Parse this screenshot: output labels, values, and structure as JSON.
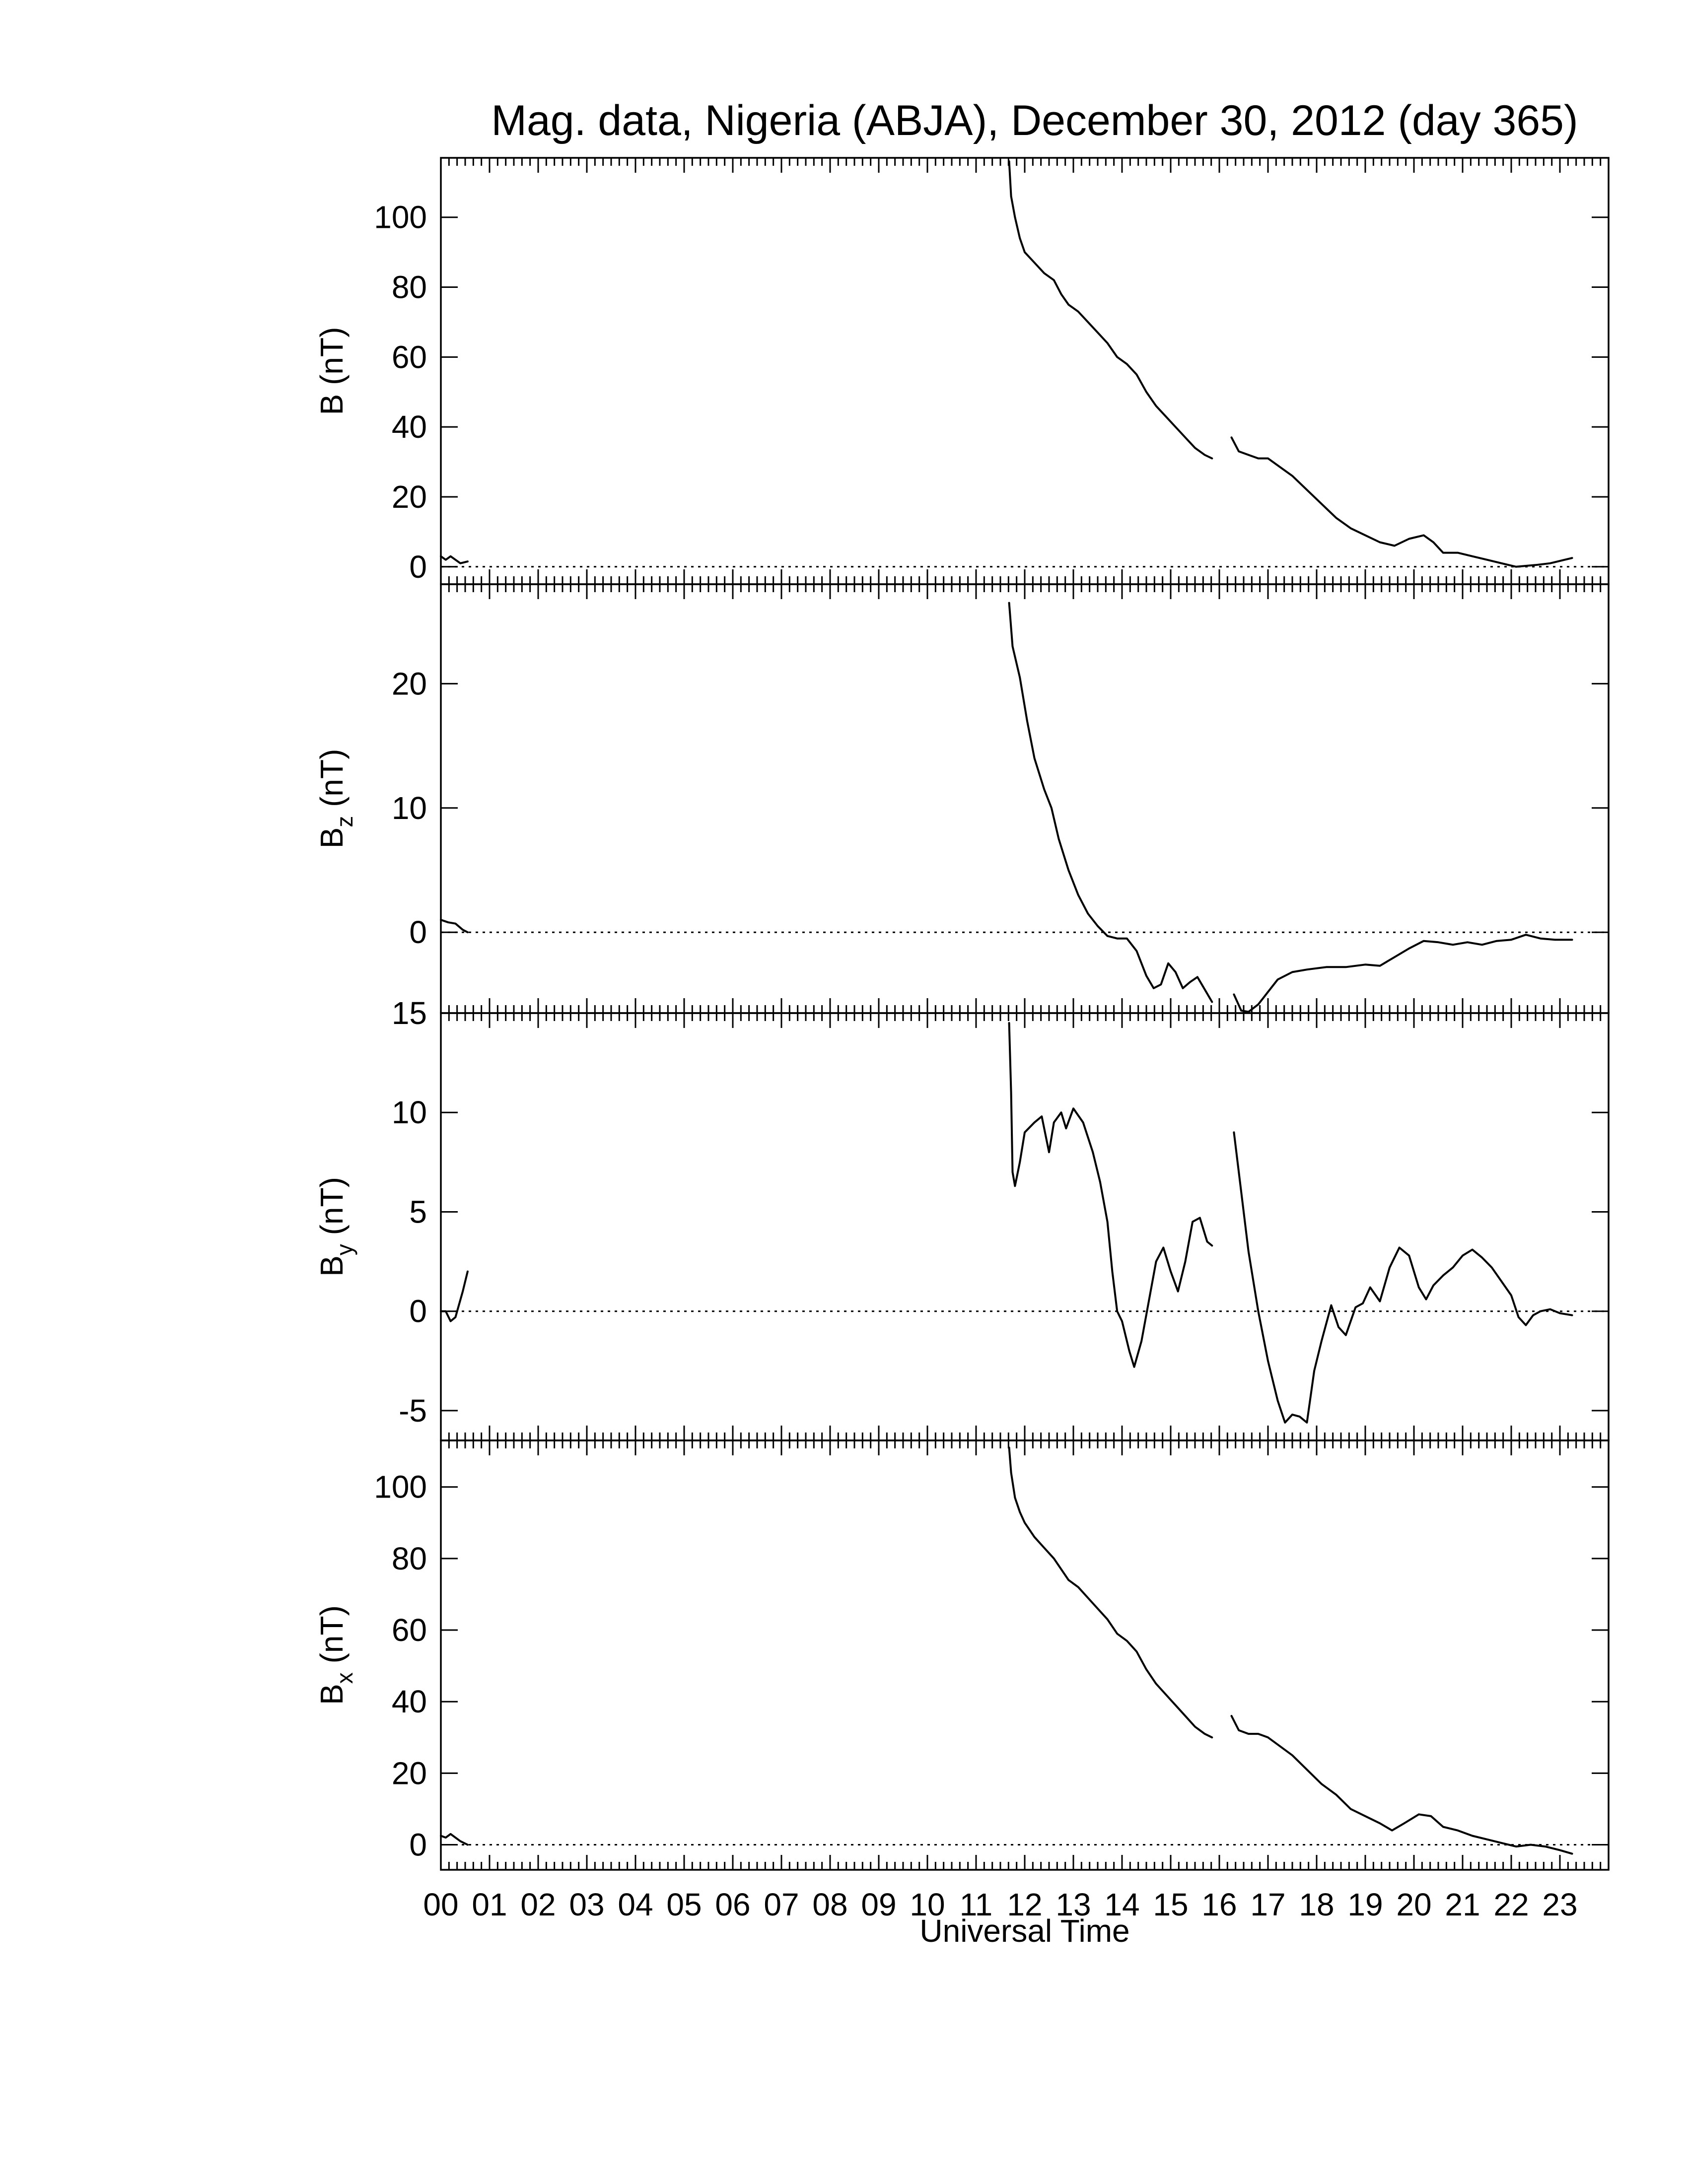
{
  "chart_data": {
    "type": "line",
    "title": "Mag. data, Nigeria (ABJA), December 30, 2012 (day 365)",
    "xlabel": "Universal Time",
    "xlim": [
      0,
      24
    ],
    "x_ticks": [
      "00",
      "01",
      "02",
      "03",
      "04",
      "05",
      "06",
      "07",
      "08",
      "09",
      "10",
      "11",
      "12",
      "13",
      "14",
      "15",
      "16",
      "17",
      "18",
      "19",
      "20",
      "21",
      "22",
      "23"
    ],
    "grid": false,
    "panels": [
      {
        "key": "b",
        "ylabel_main": "B",
        "ylabel_sub": "",
        "ylabel_unit": " (nT)",
        "ylim": [
          -5,
          117
        ],
        "yticks": [
          "0",
          "20",
          "40",
          "60",
          "80",
          "100"
        ],
        "ytick_values": [
          0,
          20,
          40,
          60,
          80,
          100
        ],
        "segments": [
          [
            [
              0.0,
              3.0
            ],
            [
              0.1,
              2.0
            ],
            [
              0.2,
              3.0
            ],
            [
              0.3,
              2.0
            ],
            [
              0.4,
              1.0
            ],
            [
              0.55,
              1.5
            ]
          ],
          [
            [
              11.68,
              116
            ],
            [
              11.72,
              106
            ],
            [
              11.8,
              100
            ],
            [
              11.9,
              94
            ],
            [
              12.0,
              90
            ],
            [
              12.2,
              87
            ],
            [
              12.4,
              84
            ],
            [
              12.6,
              82
            ],
            [
              12.75,
              78
            ],
            [
              12.9,
              75
            ],
            [
              13.1,
              73
            ],
            [
              13.3,
              70
            ],
            [
              13.5,
              67
            ],
            [
              13.7,
              64
            ],
            [
              13.9,
              60
            ],
            [
              14.1,
              58
            ],
            [
              14.3,
              55
            ],
            [
              14.5,
              50
            ],
            [
              14.7,
              46
            ],
            [
              14.9,
              43
            ],
            [
              15.1,
              40
            ],
            [
              15.3,
              37
            ],
            [
              15.5,
              34
            ],
            [
              15.7,
              32
            ],
            [
              15.85,
              31
            ]
          ],
          [
            [
              16.25,
              37
            ],
            [
              16.4,
              33
            ],
            [
              16.6,
              32
            ],
            [
              16.8,
              31
            ],
            [
              17.0,
              31
            ],
            [
              17.2,
              29
            ],
            [
              17.5,
              26
            ],
            [
              17.8,
              22
            ],
            [
              18.1,
              18
            ],
            [
              18.4,
              14
            ],
            [
              18.7,
              11
            ],
            [
              19.0,
              9
            ],
            [
              19.3,
              7
            ],
            [
              19.6,
              6
            ],
            [
              19.9,
              8
            ],
            [
              20.2,
              9
            ],
            [
              20.4,
              7
            ],
            [
              20.6,
              4
            ],
            [
              20.9,
              4
            ],
            [
              21.2,
              3
            ],
            [
              21.5,
              2
            ],
            [
              21.8,
              1
            ],
            [
              22.1,
              0
            ],
            [
              22.5,
              0.5
            ],
            [
              22.8,
              1
            ],
            [
              23.1,
              2
            ],
            [
              23.25,
              2.5
            ]
          ]
        ]
      },
      {
        "key": "bz",
        "ylabel_main": "B",
        "ylabel_sub": "z",
        "ylabel_unit": " (nT)",
        "ylim": [
          -6.5,
          28
        ],
        "yticks": [
          "0",
          "10",
          "20"
        ],
        "ytick_values": [
          0,
          10,
          20
        ],
        "segments": [
          [
            [
              0.0,
              1.0
            ],
            [
              0.15,
              0.8
            ],
            [
              0.3,
              0.7
            ],
            [
              0.45,
              0.2
            ],
            [
              0.55,
              0.0
            ]
          ],
          [
            [
              11.68,
              26.5
            ],
            [
              11.75,
              23
            ],
            [
              11.9,
              20.5
            ],
            [
              12.05,
              17
            ],
            [
              12.2,
              14
            ],
            [
              12.4,
              11.5
            ],
            [
              12.55,
              10
            ],
            [
              12.7,
              7.5
            ],
            [
              12.9,
              5
            ],
            [
              13.1,
              3
            ],
            [
              13.3,
              1.5
            ],
            [
              13.5,
              0.5
            ],
            [
              13.7,
              -0.3
            ],
            [
              13.9,
              -0.5
            ],
            [
              14.1,
              -0.5
            ],
            [
              14.3,
              -1.5
            ],
            [
              14.5,
              -3.5
            ],
            [
              14.65,
              -4.5
            ],
            [
              14.8,
              -4.2
            ],
            [
              14.95,
              -2.5
            ],
            [
              15.1,
              -3.2
            ],
            [
              15.25,
              -4.5
            ],
            [
              15.4,
              -4.0
            ],
            [
              15.55,
              -3.6
            ],
            [
              15.7,
              -4.6
            ],
            [
              15.85,
              -5.6
            ]
          ],
          [
            [
              16.3,
              -5.0
            ],
            [
              16.45,
              -6.3
            ],
            [
              16.6,
              -6.4
            ],
            [
              16.8,
              -5.8
            ],
            [
              17.0,
              -4.8
            ],
            [
              17.2,
              -3.8
            ],
            [
              17.5,
              -3.2
            ],
            [
              17.8,
              -3.0
            ],
            [
              18.2,
              -2.8
            ],
            [
              18.6,
              -2.8
            ],
            [
              19.0,
              -2.6
            ],
            [
              19.3,
              -2.7
            ],
            [
              19.6,
              -2.0
            ],
            [
              19.9,
              -1.3
            ],
            [
              20.2,
              -0.7
            ],
            [
              20.5,
              -0.8
            ],
            [
              20.8,
              -1.0
            ],
            [
              21.1,
              -0.8
            ],
            [
              21.4,
              -1.0
            ],
            [
              21.7,
              -0.7
            ],
            [
              22.0,
              -0.6
            ],
            [
              22.3,
              -0.2
            ],
            [
              22.6,
              -0.5
            ],
            [
              22.9,
              -0.6
            ],
            [
              23.25,
              -0.6
            ]
          ]
        ]
      },
      {
        "key": "by",
        "ylabel_main": "B",
        "ylabel_sub": "y",
        "ylabel_unit": " (nT)",
        "ylim": [
          -6.5,
          15
        ],
        "yticks": [
          "-5",
          "0",
          "5",
          "10",
          "15"
        ],
        "ytick_values": [
          -5,
          0,
          5,
          10,
          15
        ],
        "segments": [
          [
            [
              0.0,
              0.0
            ],
            [
              0.1,
              0.0
            ],
            [
              0.2,
              -0.5
            ],
            [
              0.3,
              -0.3
            ],
            [
              0.45,
              1.0
            ],
            [
              0.55,
              2.0
            ]
          ],
          [
            [
              11.68,
              14.5
            ],
            [
              11.72,
              11
            ],
            [
              11.75,
              7
            ],
            [
              11.8,
              6.3
            ],
            [
              11.9,
              7.5
            ],
            [
              12.0,
              9
            ],
            [
              12.2,
              9.5
            ],
            [
              12.35,
              9.8
            ],
            [
              12.5,
              8
            ],
            [
              12.6,
              9.5
            ],
            [
              12.75,
              10
            ],
            [
              12.85,
              9.2
            ],
            [
              13.0,
              10.2
            ],
            [
              13.2,
              9.5
            ],
            [
              13.4,
              8
            ],
            [
              13.55,
              6.5
            ],
            [
              13.7,
              4.5
            ],
            [
              13.8,
              2
            ],
            [
              13.9,
              0
            ],
            [
              14.0,
              -0.5
            ],
            [
              14.15,
              -2
            ],
            [
              14.25,
              -2.8
            ],
            [
              14.4,
              -1.5
            ],
            [
              14.55,
              0.5
            ],
            [
              14.7,
              2.5
            ],
            [
              14.85,
              3.2
            ],
            [
              15.0,
              2.0
            ],
            [
              15.15,
              1.0
            ],
            [
              15.3,
              2.5
            ],
            [
              15.45,
              4.5
            ],
            [
              15.6,
              4.7
            ],
            [
              15.75,
              3.5
            ],
            [
              15.85,
              3.3
            ]
          ],
          [
            [
              16.3,
              9.0
            ],
            [
              16.45,
              6
            ],
            [
              16.6,
              3
            ],
            [
              16.8,
              0
            ],
            [
              17.0,
              -2.5
            ],
            [
              17.2,
              -4.5
            ],
            [
              17.35,
              -5.6
            ],
            [
              17.5,
              -5.2
            ],
            [
              17.65,
              -5.3
            ],
            [
              17.8,
              -5.6
            ],
            [
              17.95,
              -3
            ],
            [
              18.1,
              -1.5
            ],
            [
              18.3,
              0.3
            ],
            [
              18.45,
              -0.8
            ],
            [
              18.6,
              -1.2
            ],
            [
              18.8,
              0.2
            ],
            [
              18.95,
              0.4
            ],
            [
              19.1,
              1.2
            ],
            [
              19.3,
              0.5
            ],
            [
              19.5,
              2.2
            ],
            [
              19.7,
              3.2
            ],
            [
              19.9,
              2.8
            ],
            [
              20.1,
              1.2
            ],
            [
              20.25,
              0.6
            ],
            [
              20.4,
              1.3
            ],
            [
              20.6,
              1.8
            ],
            [
              20.8,
              2.2
            ],
            [
              21.0,
              2.8
            ],
            [
              21.2,
              3.1
            ],
            [
              21.4,
              2.7
            ],
            [
              21.6,
              2.2
            ],
            [
              21.8,
              1.5
            ],
            [
              22.0,
              0.8
            ],
            [
              22.15,
              -0.3
            ],
            [
              22.3,
              -0.7
            ],
            [
              22.45,
              -0.2
            ],
            [
              22.6,
              0.0
            ],
            [
              22.8,
              0.1
            ],
            [
              23.0,
              -0.1
            ],
            [
              23.25,
              -0.2
            ]
          ]
        ]
      },
      {
        "key": "bx",
        "ylabel_main": "B",
        "ylabel_sub": "x",
        "ylabel_unit": " (nT)",
        "ylim": [
          -7,
          113
        ],
        "yticks": [
          "0",
          "20",
          "40",
          "60",
          "80",
          "100"
        ],
        "ytick_values": [
          0,
          20,
          40,
          60,
          80,
          100
        ],
        "segments": [
          [
            [
              0.0,
              2.5
            ],
            [
              0.1,
              2.0
            ],
            [
              0.2,
              3.0
            ],
            [
              0.3,
              2.0
            ],
            [
              0.4,
              1.0
            ],
            [
              0.55,
              0.0
            ]
          ],
          [
            [
              11.68,
              111
            ],
            [
              11.72,
              104
            ],
            [
              11.8,
              97
            ],
            [
              11.9,
              93
            ],
            [
              12.0,
              90
            ],
            [
              12.2,
              86
            ],
            [
              12.4,
              83
            ],
            [
              12.6,
              80
            ],
            [
              12.75,
              77
            ],
            [
              12.9,
              74
            ],
            [
              13.1,
              72
            ],
            [
              13.3,
              69
            ],
            [
              13.5,
              66
            ],
            [
              13.7,
              63
            ],
            [
              13.9,
              59
            ],
            [
              14.1,
              57
            ],
            [
              14.3,
              54
            ],
            [
              14.5,
              49
            ],
            [
              14.7,
              45
            ],
            [
              14.9,
              42
            ],
            [
              15.1,
              39
            ],
            [
              15.3,
              36
            ],
            [
              15.5,
              33
            ],
            [
              15.7,
              31
            ],
            [
              15.85,
              30
            ]
          ],
          [
            [
              16.25,
              36
            ],
            [
              16.4,
              32
            ],
            [
              16.6,
              31
            ],
            [
              16.8,
              31
            ],
            [
              17.0,
              30
            ],
            [
              17.2,
              28
            ],
            [
              17.5,
              25
            ],
            [
              17.8,
              21
            ],
            [
              18.1,
              17
            ],
            [
              18.4,
              14
            ],
            [
              18.7,
              10
            ],
            [
              19.0,
              8
            ],
            [
              19.3,
              6
            ],
            [
              19.55,
              4
            ],
            [
              19.8,
              6
            ],
            [
              20.1,
              8.5
            ],
            [
              20.35,
              8
            ],
            [
              20.6,
              5
            ],
            [
              20.9,
              4
            ],
            [
              21.2,
              2.5
            ],
            [
              21.5,
              1.5
            ],
            [
              21.8,
              0.5
            ],
            [
              22.1,
              -0.5
            ],
            [
              22.4,
              0
            ],
            [
              22.7,
              -0.5
            ],
            [
              23.0,
              -1.5
            ],
            [
              23.25,
              -2.5
            ]
          ]
        ]
      }
    ]
  }
}
